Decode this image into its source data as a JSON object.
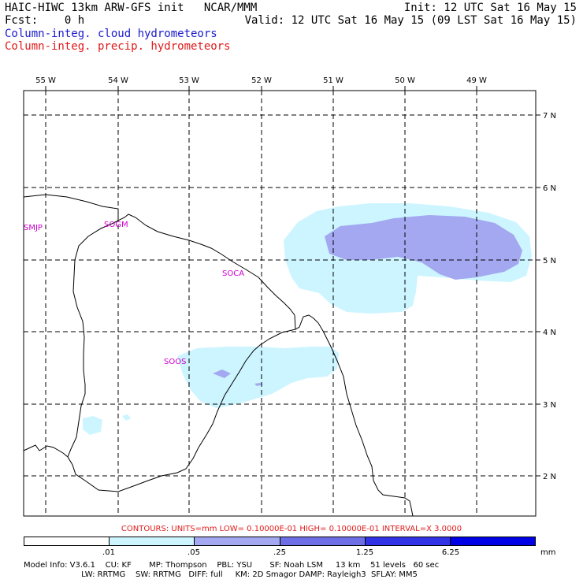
{
  "header": {
    "model_line": "HAIC-HIWC 13km ARW-GFS init   NCAR/MMM",
    "fcst_line": "Fcst:    0 h",
    "init_line": "Init: 12 UTC Sat 16 May 15",
    "valid_line": "Valid: 12 UTC Sat 16 May 15 (09 LST Sat 16 May 15)",
    "field1": "Column-integ. cloud hydrometeors",
    "field2": "Column-integ. precip. hydrometeors"
  },
  "map": {
    "lon_labels": [
      "55 W",
      "54 W",
      "53 W",
      "52 W",
      "51 W",
      "50 W",
      "49 W"
    ],
    "lat_labels": [
      "7 N",
      "6 N",
      "5 N",
      "4 N",
      "3 N",
      "2 N"
    ],
    "stations": [
      "SMJP",
      "SOGM",
      "SOCA",
      "SOOS"
    ],
    "fill_colors": {
      "light": "#ccf5ff",
      "medium": "#a3a8f0",
      "dark": "#8282f0"
    }
  },
  "contours_text": "CONTOURS:  UNITS=mm  LOW= 0.10000E-01  HIGH= 0.10000E-01  INTERVAL=X  3.0000",
  "colorbar": {
    "colors": [
      "#ffffff",
      "#ccf5ff",
      "#a3a8f0",
      "#6e6ee6",
      "#3232e6",
      "#0000e6"
    ],
    "labels": [
      ".01",
      ".05",
      ".25",
      "1.25",
      "6.25"
    ],
    "unit": "mm"
  },
  "model_info": {
    "line1": "Model Info: V3.6.1    CU: KF       MP: Thompson    PBL: YSU       SF: Noah LSM     13 km    51 levels   60 sec",
    "line2": "                       LW: RRTMG    SW: RRTMG   DIFF: full     KM: 2D Smagor DAMP: Rayleigh3  SFLAY: MM5"
  }
}
